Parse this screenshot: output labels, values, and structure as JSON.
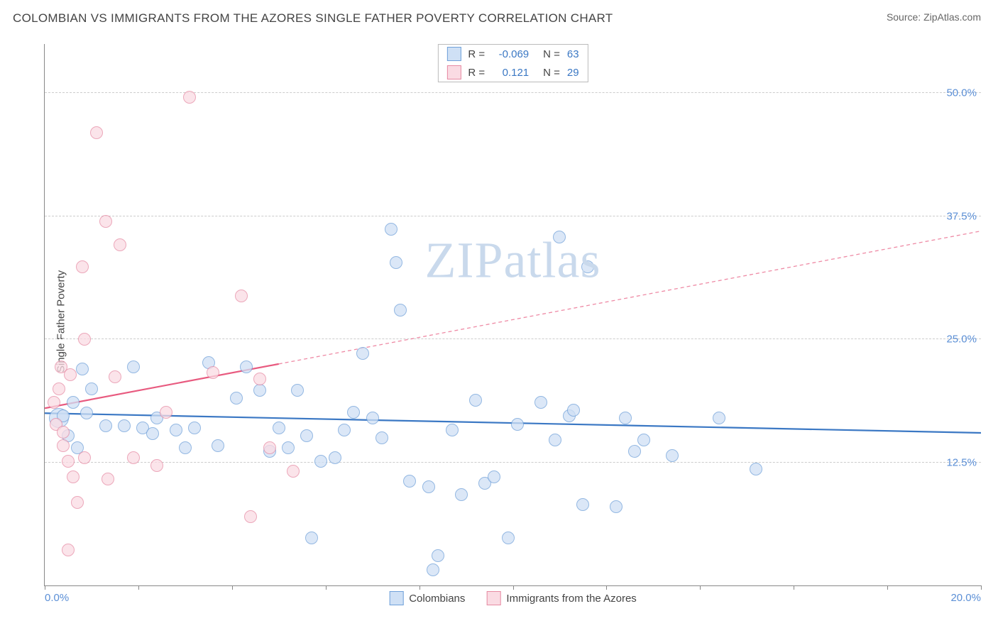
{
  "title": "COLOMBIAN VS IMMIGRANTS FROM THE AZORES SINGLE FATHER POVERTY CORRELATION CHART",
  "source_label": "Source: ",
  "source_name": "ZipAtlas.com",
  "ylabel": "Single Father Poverty",
  "watermark": "ZIPatlas",
  "watermark_color": "#c9d9ec",
  "chart": {
    "type": "scatter",
    "xlim": [
      0,
      20
    ],
    "ylim": [
      0,
      55
    ],
    "yticks": [
      12.5,
      25.0,
      37.5,
      50.0
    ],
    "ytick_labels": [
      "12.5%",
      "25.0%",
      "37.5%",
      "50.0%"
    ],
    "ytick_color": "#5b8fd6",
    "xticks_minor": [
      0,
      2,
      4,
      6,
      8,
      10,
      12,
      14,
      16,
      18,
      20
    ],
    "xtick_labels": [
      {
        "x": 0,
        "label": "0.0%"
      },
      {
        "x": 20,
        "label": "20.0%"
      }
    ],
    "xtick_color": "#5b8fd6",
    "grid_color": "#cccccc",
    "axis_color": "#888888",
    "background_color": "#ffffff",
    "series": [
      {
        "name": "Colombians",
        "marker_fill": "#cfe0f5",
        "marker_stroke": "#6fa0d9",
        "marker_opacity": 0.75,
        "marker_radius": 9,
        "trend_color": "#3b78c4",
        "trend_solid_xmax": 20,
        "trend": {
          "y_at_x0": 17.5,
          "y_at_x20": 15.5
        },
        "R": "-0.069",
        "N": "63",
        "points": [
          {
            "x": 0.3,
            "y": 17.0,
            "r": 14
          },
          {
            "x": 0.4,
            "y": 17.2
          },
          {
            "x": 0.5,
            "y": 15.2
          },
          {
            "x": 0.6,
            "y": 18.6
          },
          {
            "x": 0.8,
            "y": 22.0
          },
          {
            "x": 0.9,
            "y": 17.5
          },
          {
            "x": 1.0,
            "y": 20.0
          },
          {
            "x": 1.3,
            "y": 16.2
          },
          {
            "x": 1.7,
            "y": 16.2
          },
          {
            "x": 1.9,
            "y": 22.2
          },
          {
            "x": 2.1,
            "y": 16.0
          },
          {
            "x": 2.3,
            "y": 15.4
          },
          {
            "x": 2.4,
            "y": 17.0
          },
          {
            "x": 2.8,
            "y": 15.8
          },
          {
            "x": 3.2,
            "y": 16.0
          },
          {
            "x": 3.5,
            "y": 22.6
          },
          {
            "x": 3.7,
            "y": 14.2
          },
          {
            "x": 4.1,
            "y": 19.0
          },
          {
            "x": 4.3,
            "y": 22.2
          },
          {
            "x": 4.6,
            "y": 19.8
          },
          {
            "x": 4.8,
            "y": 13.6
          },
          {
            "x": 5.0,
            "y": 16.0
          },
          {
            "x": 5.2,
            "y": 14.0
          },
          {
            "x": 5.4,
            "y": 19.8
          },
          {
            "x": 5.6,
            "y": 15.2
          },
          {
            "x": 5.7,
            "y": 4.8
          },
          {
            "x": 6.2,
            "y": 13.0
          },
          {
            "x": 6.6,
            "y": 17.6
          },
          {
            "x": 6.8,
            "y": 23.6
          },
          {
            "x": 7.0,
            "y": 17.0
          },
          {
            "x": 7.2,
            "y": 15.0
          },
          {
            "x": 7.5,
            "y": 32.8
          },
          {
            "x": 7.4,
            "y": 36.2
          },
          {
            "x": 7.6,
            "y": 28.0
          },
          {
            "x": 7.8,
            "y": 10.6
          },
          {
            "x": 8.2,
            "y": 10.0
          },
          {
            "x": 8.3,
            "y": 1.6
          },
          {
            "x": 8.4,
            "y": 3.0
          },
          {
            "x": 8.7,
            "y": 15.8
          },
          {
            "x": 8.9,
            "y": 9.2
          },
          {
            "x": 9.2,
            "y": 18.8
          },
          {
            "x": 9.4,
            "y": 10.4
          },
          {
            "x": 9.6,
            "y": 11.0
          },
          {
            "x": 10.1,
            "y": 16.4
          },
          {
            "x": 10.6,
            "y": 18.6
          },
          {
            "x": 10.9,
            "y": 14.8
          },
          {
            "x": 11.0,
            "y": 35.4
          },
          {
            "x": 11.2,
            "y": 17.2
          },
          {
            "x": 11.3,
            "y": 17.8
          },
          {
            "x": 11.5,
            "y": 8.2
          },
          {
            "x": 11.6,
            "y": 32.4
          },
          {
            "x": 12.2,
            "y": 8.0
          },
          {
            "x": 12.4,
            "y": 17.0
          },
          {
            "x": 12.6,
            "y": 13.6
          },
          {
            "x": 12.8,
            "y": 14.8
          },
          {
            "x": 13.4,
            "y": 13.2
          },
          {
            "x": 14.4,
            "y": 17.0
          },
          {
            "x": 15.2,
            "y": 11.8
          },
          {
            "x": 9.9,
            "y": 4.8
          },
          {
            "x": 5.9,
            "y": 12.6
          },
          {
            "x": 6.4,
            "y": 15.8
          },
          {
            "x": 3.0,
            "y": 14.0
          },
          {
            "x": 0.7,
            "y": 14.0
          }
        ]
      },
      {
        "name": "Immigrants from the Azores",
        "marker_fill": "#fadbe3",
        "marker_stroke": "#e68aa3",
        "marker_opacity": 0.75,
        "marker_radius": 9,
        "trend_color": "#e85a7f",
        "trend_solid_xmax": 5,
        "trend": {
          "y_at_x0": 18.0,
          "y_at_x20": 36.0
        },
        "R": "0.121",
        "N": "29",
        "points": [
          {
            "x": 0.2,
            "y": 18.6
          },
          {
            "x": 0.25,
            "y": 16.4
          },
          {
            "x": 0.3,
            "y": 20.0
          },
          {
            "x": 0.35,
            "y": 22.2
          },
          {
            "x": 0.4,
            "y": 15.6
          },
          {
            "x": 0.4,
            "y": 14.2
          },
          {
            "x": 0.5,
            "y": 3.6
          },
          {
            "x": 0.5,
            "y": 12.6
          },
          {
            "x": 0.55,
            "y": 21.4
          },
          {
            "x": 0.6,
            "y": 11.0
          },
          {
            "x": 0.7,
            "y": 8.4
          },
          {
            "x": 0.8,
            "y": 32.4
          },
          {
            "x": 0.85,
            "y": 13.0
          },
          {
            "x": 0.85,
            "y": 25.0
          },
          {
            "x": 1.1,
            "y": 46.0
          },
          {
            "x": 1.3,
            "y": 37.0
          },
          {
            "x": 1.35,
            "y": 10.8
          },
          {
            "x": 1.5,
            "y": 21.2
          },
          {
            "x": 1.6,
            "y": 34.6
          },
          {
            "x": 1.9,
            "y": 13.0
          },
          {
            "x": 2.4,
            "y": 12.2
          },
          {
            "x": 2.6,
            "y": 17.6
          },
          {
            "x": 3.1,
            "y": 49.6
          },
          {
            "x": 3.6,
            "y": 21.6
          },
          {
            "x": 4.2,
            "y": 29.4
          },
          {
            "x": 4.4,
            "y": 7.0
          },
          {
            "x": 4.6,
            "y": 21.0
          },
          {
            "x": 4.8,
            "y": 14.0
          },
          {
            "x": 5.3,
            "y": 11.6
          }
        ]
      }
    ],
    "legend_bottom": [
      {
        "swatch_fill": "#cfe0f5",
        "swatch_stroke": "#6fa0d9",
        "label": "Colombians"
      },
      {
        "swatch_fill": "#fadbe3",
        "swatch_stroke": "#e68aa3",
        "label": "Immigrants from the Azores"
      }
    ],
    "legend_top_value_color": "#3b78c4"
  }
}
